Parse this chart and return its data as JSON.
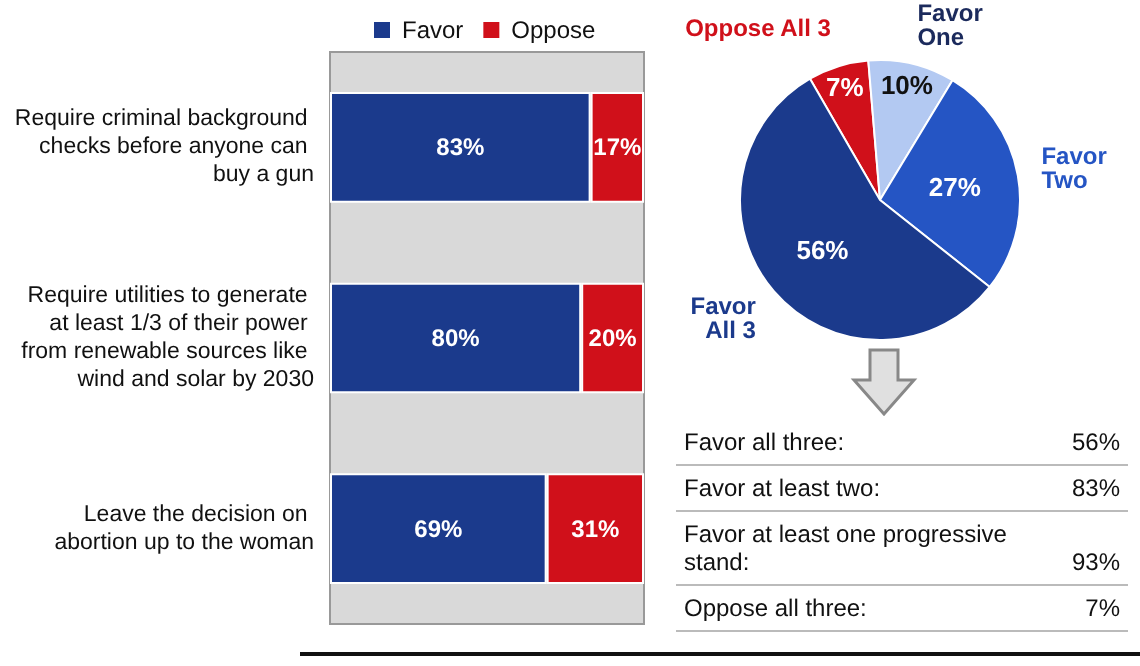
{
  "chart_data": [
    {
      "type": "bar",
      "orientation": "horizontal",
      "stacked": true,
      "categories": [
        "Require criminal background checks before anyone can buy a gun",
        "Require utilities to generate at least 1/3 of their power from renewable sources like wind and solar by 2030",
        "Leave the decision on abortion up to the woman"
      ],
      "series": [
        {
          "name": "Favor",
          "color": "#1b3a8c",
          "values": [
            83,
            80,
            69
          ],
          "value_labels": [
            "83%",
            "80%",
            "69%"
          ]
        },
        {
          "name": "Oppose",
          "color": "#d0101a",
          "values": [
            17,
            20,
            31
          ],
          "value_labels": [
            "17%",
            "20%",
            "31%"
          ]
        }
      ],
      "legend": "top",
      "grid": false,
      "tick_labels": "y"
    },
    {
      "type": "pie",
      "categories": [
        "Oppose All 3",
        "Favor One",
        "Favor Two",
        "Favor All 3"
      ],
      "values": [
        7,
        10,
        27,
        56
      ],
      "colors": [
        "#d0101a",
        "#b3c9f2",
        "#2555c4",
        "#1b3a8c"
      ],
      "value_labels": [
        "7%",
        "10%",
        "27%",
        "56%"
      ]
    },
    {
      "type": "other",
      "annotations": [
        "Favor all three:",
        "56%",
        "Favor at least two:",
        "83%",
        "Favor at least one progressive stand:",
        "93%",
        "Oppose all three:",
        "7%"
      ]
    }
  ]
}
